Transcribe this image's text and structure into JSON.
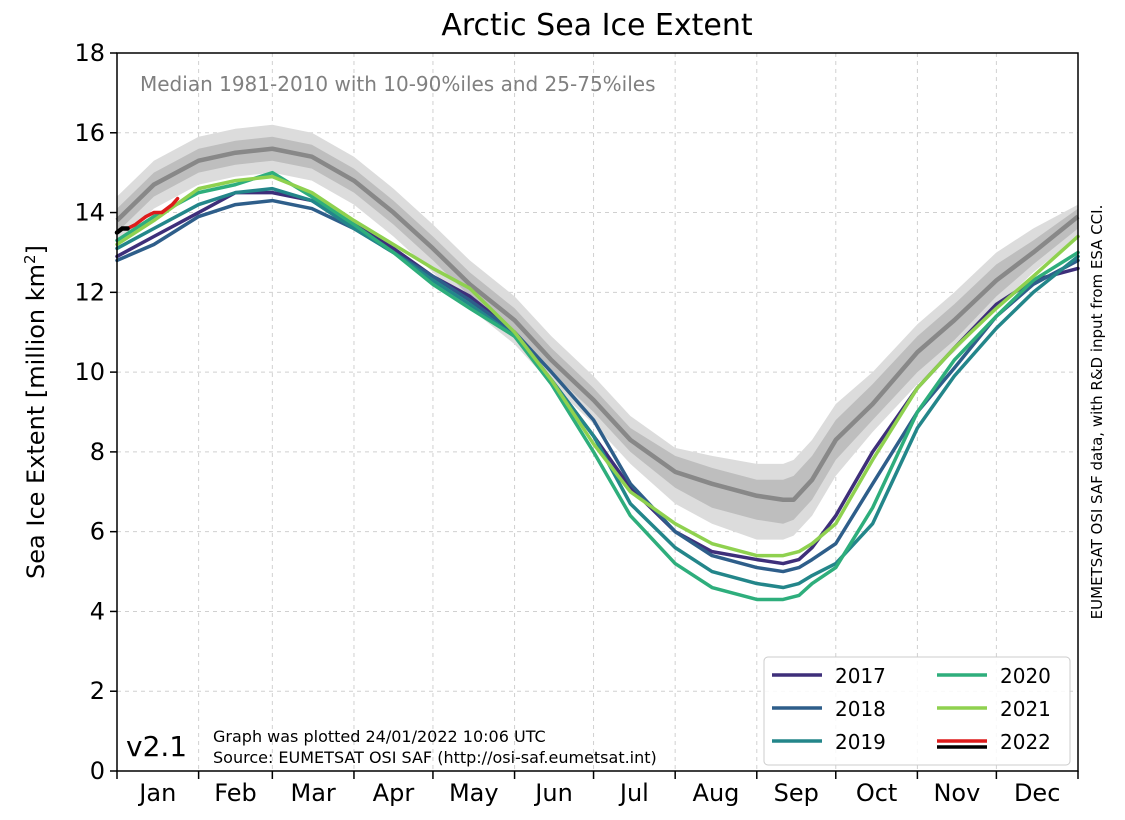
{
  "chart_data": {
    "type": "line",
    "title": "Arctic Sea Ice Extent",
    "subtitle": "Median 1981-2010 with 10-90%iles and 25-75%iles",
    "ylabel_main": "Sea Ice Extent [million km",
    "ylabel_sup": "2",
    "ylabel_close": "]",
    "xlabel": "",
    "ylim": [
      0,
      18
    ],
    "xlim": [
      1,
      366
    ],
    "yticks": [
      0,
      2,
      4,
      6,
      8,
      10,
      12,
      14,
      16,
      18
    ],
    "month_labels": [
      "Jan",
      "Feb",
      "Mar",
      "Apr",
      "May",
      "Jun",
      "Jul",
      "Aug",
      "Sep",
      "Oct",
      "Nov",
      "Dec"
    ],
    "grid": true,
    "legend_position": "bottom-right",
    "version": "v2.1",
    "plotted_note": "Graph was plotted 24/01/2022 10:06 UTC",
    "source_note": "Source: EUMETSAT OSI SAF (http://osi-saf.eumetsat.int)",
    "credit": "EUMETSAT OSI SAF data, with R&D input from ESA CCI.",
    "colors": {
      "band_outer": "#dcdcdc",
      "band_inner": "#bebebe",
      "median": "#888888"
    },
    "climatology": {
      "x": [
        1,
        15,
        32,
        46,
        60,
        75,
        91,
        106,
        121,
        135,
        152,
        166,
        182,
        196,
        213,
        227,
        244,
        254,
        258,
        265,
        274,
        288,
        305,
        319,
        335,
        349,
        366
      ],
      "median": [
        13.8,
        14.7,
        15.3,
        15.5,
        15.6,
        15.4,
        14.8,
        14.0,
        13.1,
        12.2,
        11.3,
        10.3,
        9.3,
        8.3,
        7.5,
        7.2,
        6.9,
        6.8,
        6.8,
        7.3,
        8.3,
        9.2,
        10.5,
        11.3,
        12.3,
        13.0,
        13.9
      ],
      "p25": [
        13.5,
        14.4,
        15.0,
        15.2,
        15.3,
        15.1,
        14.5,
        13.7,
        12.8,
        11.9,
        11.0,
        10.0,
        9.0,
        8.0,
        7.1,
        6.6,
        6.3,
        6.2,
        6.3,
        6.8,
        7.8,
        8.8,
        10.0,
        10.8,
        11.9,
        12.7,
        13.6
      ],
      "p75": [
        14.1,
        15.0,
        15.6,
        15.8,
        15.9,
        15.7,
        15.1,
        14.3,
        13.4,
        12.5,
        11.6,
        10.6,
        9.6,
        8.6,
        7.9,
        7.6,
        7.3,
        7.3,
        7.4,
        7.9,
        8.8,
        9.7,
        10.9,
        11.7,
        12.7,
        13.3,
        14.1
      ],
      "p10": [
        13.2,
        14.1,
        14.7,
        14.9,
        15.0,
        14.8,
        14.2,
        13.4,
        12.5,
        11.6,
        10.7,
        9.7,
        8.7,
        7.7,
        6.7,
        6.2,
        5.8,
        5.8,
        5.9,
        6.4,
        7.4,
        8.5,
        9.7,
        10.5,
        11.6,
        12.5,
        13.4
      ],
      "p90": [
        14.4,
        15.3,
        15.9,
        16.1,
        16.2,
        16.0,
        15.4,
        14.6,
        13.7,
        12.8,
        11.9,
        10.9,
        9.9,
        8.9,
        8.1,
        7.9,
        7.7,
        7.7,
        7.8,
        8.3,
        9.2,
        10.0,
        11.2,
        12.0,
        13.0,
        13.6,
        14.2
      ]
    },
    "series": [
      {
        "name": "2017",
        "color": "#3e2f7a",
        "x": [
          1,
          15,
          32,
          46,
          60,
          75,
          91,
          106,
          121,
          135,
          152,
          166,
          182,
          196,
          213,
          227,
          244,
          254,
          260,
          265,
          274,
          288,
          305,
          319,
          335,
          349,
          366
        ],
        "values": [
          12.9,
          13.4,
          14.0,
          14.5,
          14.5,
          14.3,
          13.7,
          13.1,
          12.4,
          11.9,
          11.0,
          9.8,
          8.4,
          7.1,
          6.0,
          5.5,
          5.3,
          5.2,
          5.3,
          5.6,
          6.4,
          8.0,
          9.6,
          10.6,
          11.7,
          12.3,
          12.6
        ]
      },
      {
        "name": "2018",
        "color": "#2e5e8a",
        "x": [
          1,
          15,
          32,
          46,
          60,
          75,
          91,
          106,
          121,
          135,
          152,
          166,
          182,
          196,
          213,
          227,
          244,
          254,
          260,
          265,
          274,
          288,
          305,
          319,
          335,
          349,
          366
        ],
        "values": [
          12.8,
          13.2,
          13.9,
          14.2,
          14.3,
          14.1,
          13.6,
          13.0,
          12.4,
          11.8,
          11.0,
          10.0,
          8.8,
          7.2,
          6.0,
          5.4,
          5.1,
          5.0,
          5.1,
          5.3,
          5.7,
          7.2,
          9.0,
          10.1,
          11.4,
          12.2,
          12.8
        ]
      },
      {
        "name": "2019",
        "color": "#23868a",
        "x": [
          1,
          15,
          32,
          46,
          60,
          75,
          91,
          106,
          121,
          135,
          152,
          166,
          182,
          196,
          213,
          227,
          244,
          254,
          260,
          265,
          274,
          288,
          305,
          319,
          335,
          349,
          366
        ],
        "values": [
          13.1,
          13.6,
          14.2,
          14.5,
          14.6,
          14.3,
          13.6,
          13.0,
          12.3,
          11.7,
          10.9,
          9.8,
          8.4,
          6.7,
          5.6,
          5.0,
          4.7,
          4.6,
          4.7,
          4.9,
          5.2,
          6.2,
          8.6,
          9.9,
          11.1,
          12.0,
          12.9
        ]
      },
      {
        "name": "2020",
        "color": "#2eae7c",
        "x": [
          1,
          15,
          32,
          46,
          60,
          75,
          91,
          106,
          121,
          135,
          152,
          166,
          182,
          196,
          213,
          227,
          244,
          254,
          260,
          265,
          274,
          288,
          305,
          319,
          335,
          349,
          366
        ],
        "values": [
          13.3,
          13.9,
          14.5,
          14.7,
          15.0,
          14.4,
          13.7,
          13.0,
          12.2,
          11.6,
          10.9,
          9.7,
          8.0,
          6.4,
          5.2,
          4.6,
          4.3,
          4.3,
          4.4,
          4.7,
          5.1,
          6.6,
          9.0,
          10.3,
          11.4,
          12.3,
          13.0
        ]
      },
      {
        "name": "2021",
        "color": "#8fd14f",
        "x": [
          1,
          15,
          32,
          46,
          60,
          75,
          91,
          106,
          121,
          135,
          152,
          166,
          182,
          196,
          213,
          227,
          244,
          254,
          260,
          265,
          274,
          288,
          305,
          319,
          335,
          349,
          366
        ],
        "values": [
          13.2,
          13.8,
          14.6,
          14.8,
          14.9,
          14.5,
          13.8,
          13.2,
          12.6,
          12.1,
          11.0,
          9.8,
          8.2,
          7.0,
          6.2,
          5.7,
          5.4,
          5.4,
          5.5,
          5.7,
          6.2,
          7.8,
          9.6,
          10.6,
          11.6,
          12.4,
          13.4
        ]
      },
      {
        "name": "2022",
        "color": "#dd1c1c",
        "legend_color_secondary": "#000000",
        "x": [
          1,
          3,
          5,
          8,
          10,
          12,
          15,
          18,
          20,
          22,
          24
        ],
        "values": [
          13.5,
          13.6,
          13.6,
          13.7,
          13.8,
          13.9,
          14.0,
          14.0,
          14.1,
          14.2,
          14.35
        ]
      }
    ]
  }
}
